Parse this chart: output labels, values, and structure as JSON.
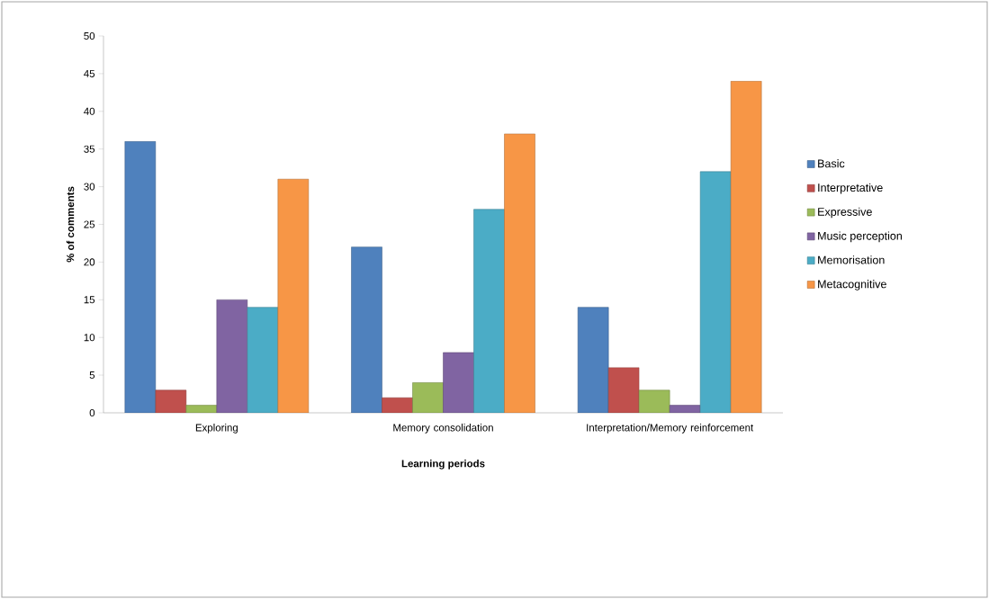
{
  "chart_data": {
    "type": "bar",
    "xlabel": "Learning periods",
    "ylabel": "% of comments",
    "categories": [
      "Exploring",
      "Memory consolidation",
      "Interpretation/Memory reinforcement"
    ],
    "series": [
      {
        "name": "Basic",
        "color": "#4f81bd",
        "values": [
          36,
          22,
          14
        ]
      },
      {
        "name": "Interpretative",
        "color": "#c0504d",
        "values": [
          3,
          2,
          6
        ]
      },
      {
        "name": "Expressive",
        "color": "#9bbb59",
        "values": [
          1,
          4,
          3
        ]
      },
      {
        "name": "Music perception",
        "color": "#8064a2",
        "values": [
          15,
          8,
          1
        ]
      },
      {
        "name": "Memorisation",
        "color": "#4bacc6",
        "values": [
          14,
          27,
          32
        ]
      },
      {
        "name": "Metacognitive",
        "color": "#f79646",
        "values": [
          31,
          37,
          44
        ]
      }
    ],
    "ylim": [
      0,
      50
    ],
    "yticks": [
      0,
      5,
      10,
      15,
      20,
      25,
      30,
      35,
      40,
      45,
      50
    ],
    "legend": "right"
  }
}
